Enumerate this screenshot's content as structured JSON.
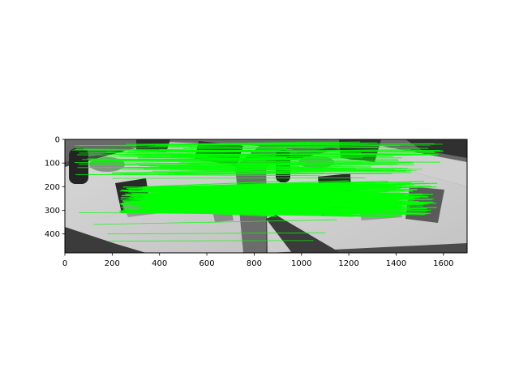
{
  "chart_data": {
    "type": "image",
    "title": "",
    "xlabel": "",
    "ylabel": "",
    "xlim": [
      0,
      1700
    ],
    "ylim": [
      480,
      0
    ],
    "x_ticks": [
      0,
      200,
      400,
      600,
      800,
      1000,
      1200,
      1400,
      1600
    ],
    "y_ticks": [
      0,
      100,
      200,
      300,
      400
    ],
    "grid": false,
    "image": {
      "description": "Two grayscale photos of a table scene placed side by side with green feature-match lines",
      "left_image_x": [
        0,
        850
      ],
      "right_image_x": [
        850,
        1700
      ],
      "y": [
        0,
        480
      ]
    },
    "match_color": "#00ff00"
  }
}
